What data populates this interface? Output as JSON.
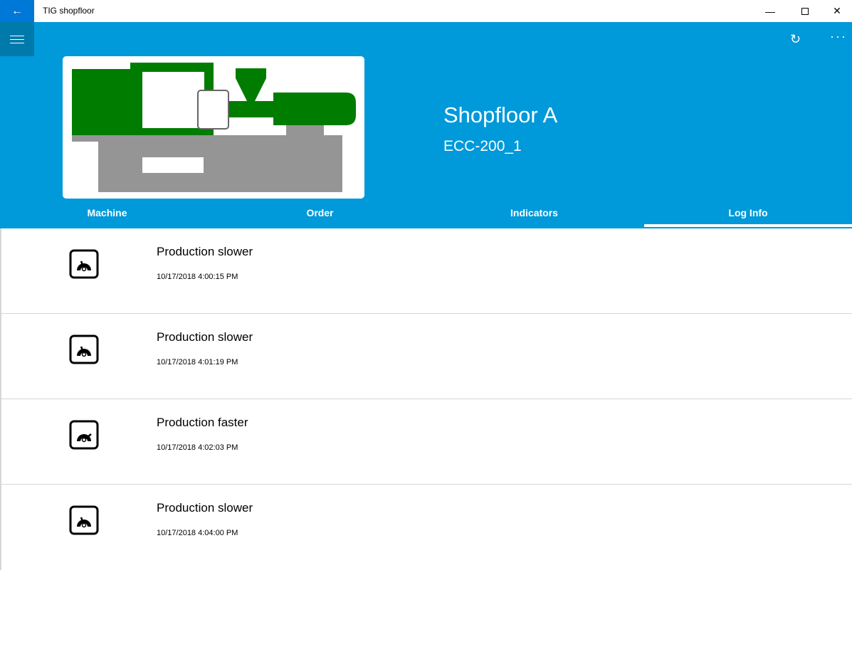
{
  "window": {
    "title": "TIG shopfloor",
    "back_icon": "arrow-left-icon",
    "controls": [
      "minimize-icon",
      "maximize-icon",
      "close-icon"
    ]
  },
  "header": {
    "title": "Shopfloor A",
    "subtitle": "ECC-200_1",
    "menu_icon": "hamburger-icon",
    "refresh_icon": "refresh-icon",
    "more_icon": "more-icon",
    "colors": {
      "header": "#0099da",
      "machine_green": "#007c00",
      "machine_grey": "#959595"
    }
  },
  "tabs": [
    {
      "label": "Machine"
    },
    {
      "label": "Order"
    },
    {
      "label": "Indicators"
    },
    {
      "label": "Log Info",
      "active": true
    }
  ],
  "log": [
    {
      "title": "Production slower",
      "timestamp": "10/17/2018 4:00:15 PM",
      "icon": "gauge-slow-icon"
    },
    {
      "title": "Production slower",
      "timestamp": "10/17/2018 4:01:19 PM",
      "icon": "gauge-slow-icon"
    },
    {
      "title": "Production faster",
      "timestamp": "10/17/2018 4:02:03 PM",
      "icon": "gauge-fast-icon"
    },
    {
      "title": "Production slower",
      "timestamp": "10/17/2018 4:04:00 PM",
      "icon": "gauge-slow-icon"
    }
  ]
}
